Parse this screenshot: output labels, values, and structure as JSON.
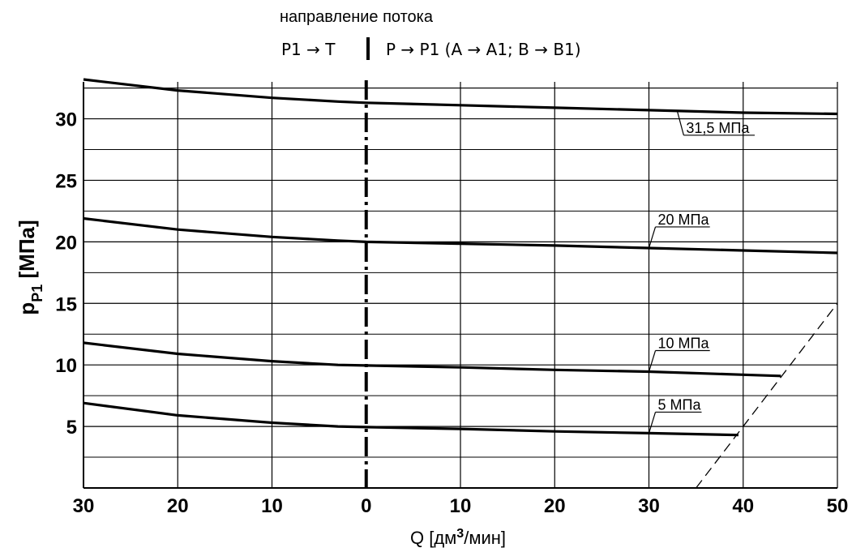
{
  "header": {
    "direction_label": "направление потока",
    "left_flow": "P1 → T",
    "right_flow": "P → P1 (A  → A1; B  → B1)"
  },
  "chart_data": {
    "type": "line",
    "title": "",
    "xlabel": "Q [дм³/мин]",
    "xlabel_main": "Q [дм",
    "xlabel_sup": "3",
    "xlabel_tail": "/мин]",
    "ylabel": "pP1 [МПа]",
    "ylabel_main": "p",
    "ylabel_sub": "P1",
    "ylabel_tail": " [МПа]",
    "x_note": "left half: flow P1 → T (Q decreasing toward 0); right half: flow P → P1",
    "xlim": [
      -30,
      50
    ],
    "ylim": [
      0,
      33
    ],
    "x_ticks": [
      -30,
      -20,
      -10,
      0,
      10,
      20,
      30,
      40,
      50
    ],
    "x_tick_labels": [
      "30",
      "20",
      "10",
      "0",
      "10",
      "20",
      "30",
      "40",
      "50"
    ],
    "y_ticks": [
      5,
      10,
      15,
      20,
      25,
      30
    ],
    "y_tick_labels": [
      "5",
      "10",
      "15",
      "20",
      "25",
      "30"
    ],
    "grid": true,
    "series": [
      {
        "name": "31,5 МПа",
        "x": [
          -30,
          -20,
          -10,
          -3,
          0,
          10,
          20,
          30,
          40,
          50
        ],
        "y": [
          33.2,
          32.3,
          31.7,
          31.4,
          31.3,
          31.1,
          30.9,
          30.7,
          30.5,
          30.4
        ],
        "label_at_x": 33
      },
      {
        "name": "20 МПа",
        "x": [
          -30,
          -20,
          -10,
          -3,
          0,
          10,
          20,
          30,
          40,
          50
        ],
        "y": [
          21.9,
          21.0,
          20.4,
          20.1,
          20.0,
          19.85,
          19.7,
          19.5,
          19.3,
          19.1
        ],
        "label_at_x": 30
      },
      {
        "name": "10 МПа",
        "x": [
          -30,
          -20,
          -10,
          -3,
          0,
          10,
          20,
          30,
          40,
          44
        ],
        "y": [
          11.8,
          10.9,
          10.3,
          10.0,
          9.95,
          9.8,
          9.6,
          9.45,
          9.2,
          9.1
        ],
        "label_at_x": 30
      },
      {
        "name": "5 МПа",
        "x": [
          -30,
          -20,
          -10,
          -3,
          0,
          10,
          20,
          30,
          39.5
        ],
        "y": [
          6.9,
          5.9,
          5.3,
          5.0,
          4.95,
          4.8,
          4.6,
          4.45,
          4.3
        ],
        "label_at_x": 30
      }
    ],
    "limit_line": {
      "x": [
        35,
        50
      ],
      "y": [
        0,
        15
      ],
      "style": "dashed"
    },
    "center_line": {
      "x": 0,
      "style": "dash-dot"
    }
  }
}
